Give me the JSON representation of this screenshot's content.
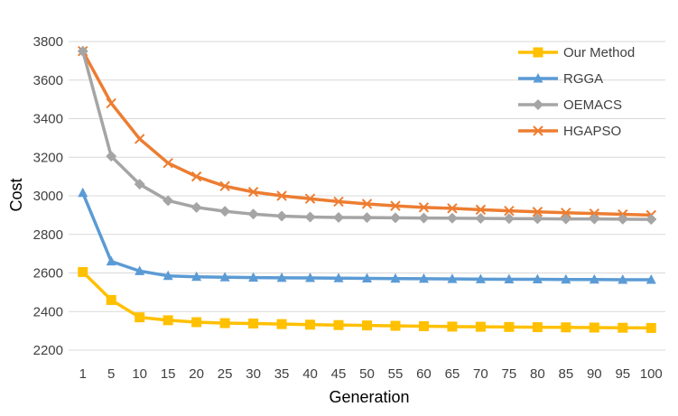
{
  "chart_data": {
    "type": "line",
    "title": "",
    "xlabel": "Generation",
    "ylabel": "Cost",
    "ylim": [
      2200,
      3800
    ],
    "yticks": [
      2200,
      2400,
      2600,
      2800,
      3000,
      3200,
      3400,
      3600,
      3800
    ],
    "grid": "horizontal",
    "legend_position": "top-right",
    "categories": [
      "1",
      "5",
      "10",
      "15",
      "20",
      "25",
      "30",
      "35",
      "40",
      "45",
      "50",
      "55",
      "60",
      "65",
      "70",
      "75",
      "80",
      "85",
      "90",
      "95",
      "100"
    ],
    "series": [
      {
        "name": "Our Method",
        "color": "#FFC000",
        "marker": "square",
        "values": [
          2605,
          2460,
          2370,
          2355,
          2345,
          2340,
          2338,
          2335,
          2332,
          2330,
          2328,
          2326,
          2324,
          2322,
          2321,
          2320,
          2319,
          2318,
          2317,
          2316,
          2315
        ]
      },
      {
        "name": "RGGA",
        "color": "#5B9BD5",
        "marker": "triangle",
        "values": [
          3015,
          2660,
          2610,
          2585,
          2580,
          2578,
          2576,
          2575,
          2574,
          2573,
          2572,
          2571,
          2570,
          2569,
          2568,
          2567,
          2567,
          2566,
          2566,
          2565,
          2565
        ]
      },
      {
        "name": "OEMACS",
        "color": "#A5A5A5",
        "marker": "diamond",
        "values": [
          3750,
          3205,
          3060,
          2975,
          2940,
          2920,
          2905,
          2895,
          2890,
          2888,
          2887,
          2886,
          2885,
          2884,
          2883,
          2882,
          2881,
          2880,
          2880,
          2879,
          2878
        ]
      },
      {
        "name": "HGAPSO",
        "color": "#ED7D31",
        "marker": "x",
        "values": [
          3750,
          3480,
          3295,
          3170,
          3100,
          3050,
          3020,
          3000,
          2985,
          2970,
          2958,
          2948,
          2940,
          2935,
          2928,
          2922,
          2917,
          2912,
          2908,
          2904,
          2900
        ]
      }
    ]
  }
}
